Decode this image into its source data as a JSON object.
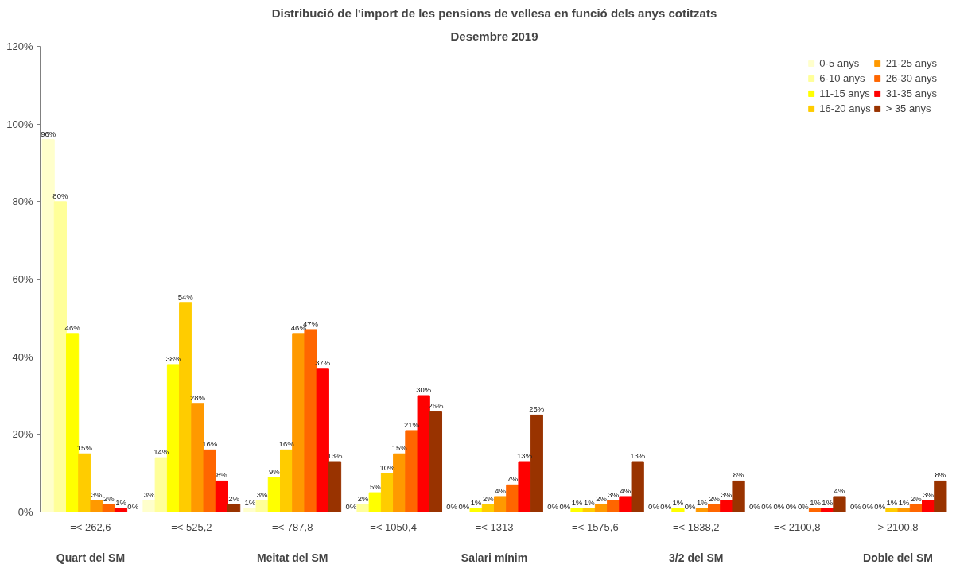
{
  "chart_data": {
    "type": "bar",
    "title": "Distribució de l'import de les pensions de vellesa en funció dels anys cotitzats",
    "subtitle": "Desembre 2019",
    "categories": [
      "=< 262,6",
      "=< 525,2",
      "=< 787,8",
      "=< 1050,4",
      "=< 1313",
      "=< 1575,6",
      "=< 1838,2",
      "=< 2100,8",
      "> 2100,8"
    ],
    "series": [
      {
        "name": "0-5 anys",
        "color": "#ffffcc",
        "values": [
          96,
          3,
          1,
          0,
          0,
          0,
          0,
          0,
          0
        ],
        "value_labels": [
          "96%",
          "3%",
          "1%",
          "0%",
          "0%",
          "0%",
          "0%",
          "0%",
          "0%"
        ]
      },
      {
        "name": "6-10 anys",
        "color": "#ffff99",
        "values": [
          80,
          14,
          3,
          2,
          0,
          0,
          0,
          0,
          0
        ],
        "value_labels": [
          "80%",
          "14%",
          "3%",
          "2%",
          "0%",
          "0%",
          "0%",
          "0%",
          "0%"
        ]
      },
      {
        "name": "11-15 anys",
        "color": "#ffff00",
        "values": [
          46,
          38,
          9,
          5,
          1,
          1,
          1,
          0,
          0
        ],
        "value_labels": [
          "46%",
          "38%",
          "9%",
          "5%",
          "1%",
          "1%",
          "1%",
          "0%",
          "0%"
        ]
      },
      {
        "name": "16-20 anys",
        "color": "#ffcc00",
        "values": [
          15,
          54,
          16,
          10,
          2,
          1,
          0,
          0,
          1
        ],
        "value_labels": [
          "15%",
          "54%",
          "16%",
          "10%",
          "2%",
          "1%",
          "0%",
          "0%",
          "1%"
        ]
      },
      {
        "name": "21-25 anys",
        "color": "#ff9900",
        "values": [
          3,
          28,
          46,
          15,
          4,
          2,
          1,
          0,
          1
        ],
        "value_labels": [
          "3%",
          "28%",
          "46%",
          "15%",
          "4%",
          "2%",
          "1%",
          "0%",
          "1%"
        ]
      },
      {
        "name": "26-30 anys",
        "color": "#ff6600",
        "values": [
          2,
          16,
          47,
          21,
          7,
          3,
          2,
          1,
          2
        ],
        "value_labels": [
          "2%",
          "16%",
          "47%",
          "21%",
          "7%",
          "3%",
          "2%",
          "1%",
          "2%"
        ]
      },
      {
        "name": "31-35 anys",
        "color": "#ff0000",
        "values": [
          1,
          8,
          37,
          30,
          13,
          4,
          3,
          1,
          3
        ],
        "value_labels": [
          "1%",
          "8%",
          "37%",
          "30%",
          "13%",
          "4%",
          "3%",
          "1%",
          "3%"
        ]
      },
      {
        "name": "> 35 anys",
        "color": "#993300",
        "values": [
          0,
          2,
          13,
          26,
          25,
          13,
          8,
          4,
          8
        ],
        "value_labels": [
          "0%",
          "2%",
          "13%",
          "26%",
          "25%",
          "13%",
          "8%",
          "4%",
          "8%"
        ]
      }
    ],
    "ylim": [
      0,
      120
    ],
    "yticks": [
      {
        "value": 0,
        "label": "0%"
      },
      {
        "value": 20,
        "label": "20%"
      },
      {
        "value": 40,
        "label": "40%"
      },
      {
        "value": 60,
        "label": "60%"
      },
      {
        "value": 80,
        "label": "80%"
      },
      {
        "value": 100,
        "label": "100%"
      },
      {
        "value": 120,
        "label": "120%"
      }
    ],
    "grid": false,
    "legend": "top right",
    "annotations": [
      "Quart del SM",
      "Meitat del SM",
      "Salari mínim",
      "3/2 del SM",
      "Doble del SM"
    ]
  }
}
